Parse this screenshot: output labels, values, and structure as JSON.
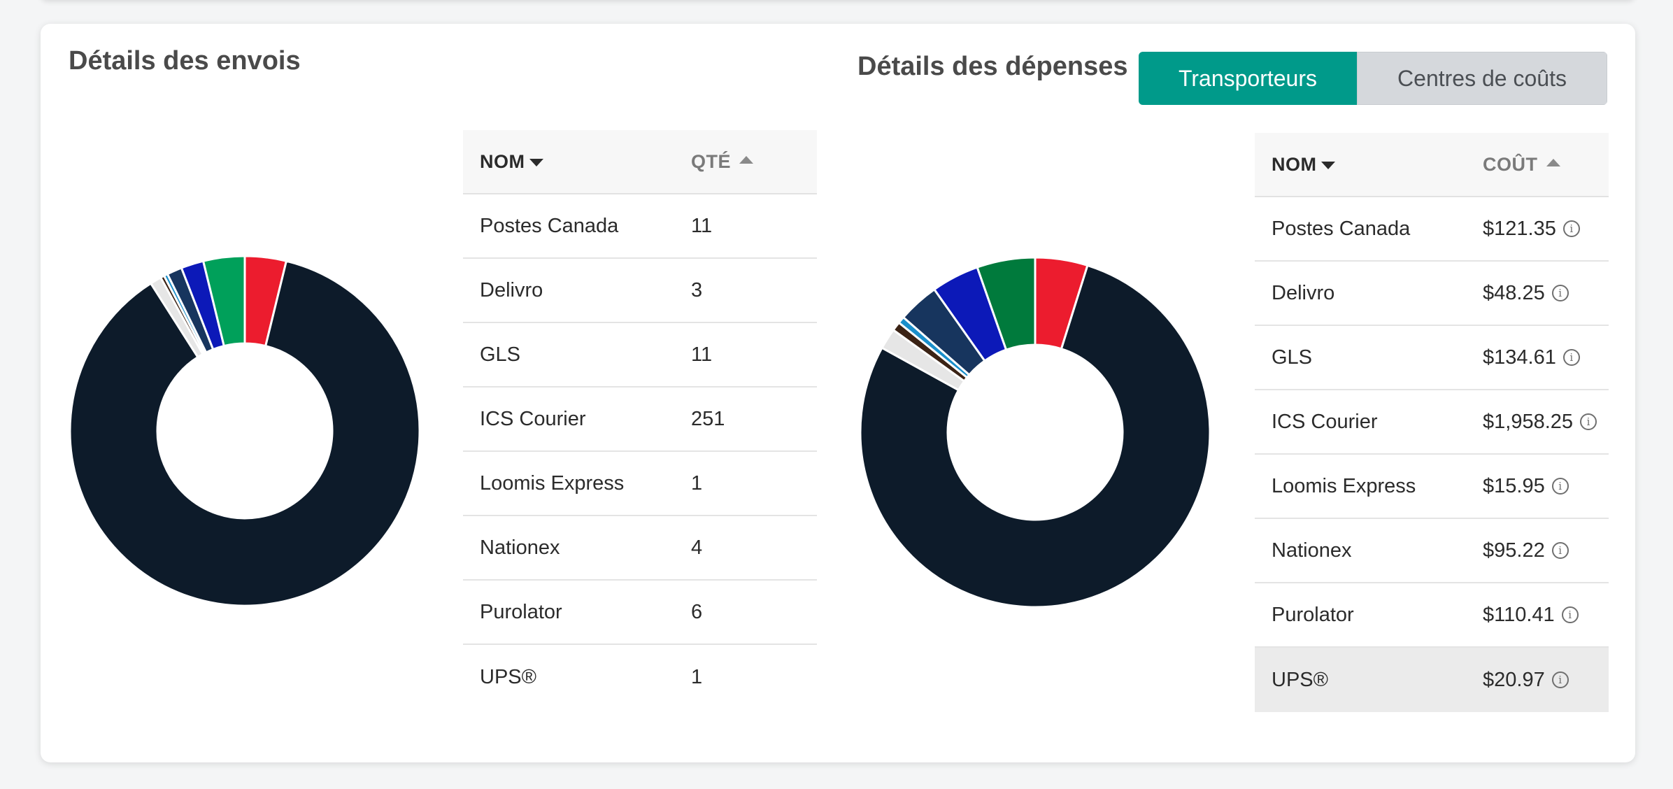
{
  "shipments": {
    "title": "Détails des envois",
    "table": {
      "col_name": "NOM",
      "col_value": "QTÉ",
      "rows": [
        {
          "name": "Postes Canada",
          "value": "11"
        },
        {
          "name": "Delivro",
          "value": "3"
        },
        {
          "name": "GLS",
          "value": "11"
        },
        {
          "name": "ICS Courier",
          "value": "251"
        },
        {
          "name": "Loomis Express",
          "value": "1"
        },
        {
          "name": "Nationex",
          "value": "4"
        },
        {
          "name": "Purolator",
          "value": "6"
        },
        {
          "name": "UPS®",
          "value": "1"
        }
      ]
    }
  },
  "expenses": {
    "title": "Détails des dépenses",
    "toggle": {
      "active": "Transporteurs",
      "inactive": "Centres de coûts"
    },
    "table": {
      "col_name": "NOM",
      "col_value": "COÛT",
      "rows": [
        {
          "name": "Postes Canada",
          "value": "$121.35"
        },
        {
          "name": "Delivro",
          "value": "$48.25"
        },
        {
          "name": "GLS",
          "value": "$134.61"
        },
        {
          "name": "ICS Courier",
          "value": "$1,958.25"
        },
        {
          "name": "Loomis Express",
          "value": "$15.95"
        },
        {
          "name": "Nationex",
          "value": "$95.22"
        },
        {
          "name": "Purolator",
          "value": "$110.41"
        },
        {
          "name": "UPS®",
          "value": "$20.97"
        }
      ],
      "highlighted_row": 7
    }
  },
  "chart_data": [
    {
      "type": "pie",
      "donut": true,
      "categories": [
        "Postes Canada",
        "ICS Courier",
        "Delivro",
        "UPS®",
        "Loomis Express",
        "Nationex",
        "Purolator",
        "GLS"
      ],
      "values": [
        11,
        251,
        3,
        1,
        1,
        4,
        6,
        11
      ],
      "colors": [
        "#ec1c2e",
        "#0d1b2a",
        "#e6e6e6",
        "#3b2315",
        "#1a8fcb",
        "#17355e",
        "#0c19b8",
        "#00a05a"
      ]
    },
    {
      "type": "pie",
      "donut": true,
      "categories": [
        "Postes Canada",
        "ICS Courier",
        "Delivro",
        "UPS®",
        "Loomis Express",
        "Nationex",
        "Purolator",
        "GLS"
      ],
      "values": [
        121.35,
        1958.25,
        48.25,
        20.97,
        15.95,
        95.22,
        110.41,
        134.61
      ],
      "colors": [
        "#ec1c2e",
        "#0d1b2a",
        "#e6e6e6",
        "#3b2315",
        "#1a8fcb",
        "#17355e",
        "#0c19b8",
        "#007a3c"
      ]
    }
  ]
}
